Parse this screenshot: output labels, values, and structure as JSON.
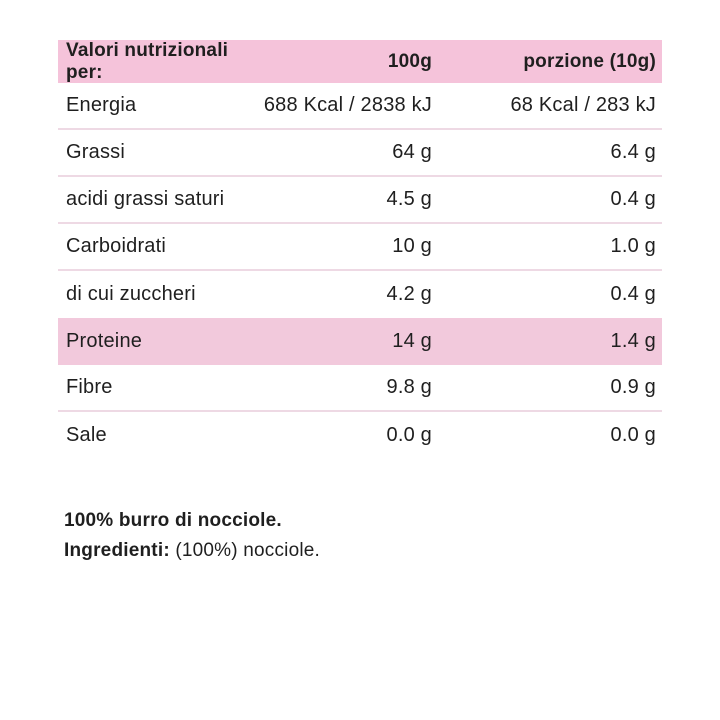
{
  "colors": {
    "header_pink": "#f5c3da",
    "highlight_pink": "#f2c9dc",
    "divider_pink": "#eed9e4",
    "text": "#1f1f1f",
    "background": "#ffffff"
  },
  "table": {
    "header": {
      "label": "Valori nutrizionali per:",
      "per_100g": "100g",
      "per_portion": "porzione (10g)"
    },
    "rows": [
      {
        "label": "Energia",
        "per_100g": "688 Kcal / 2838 kJ",
        "per_portion": "68 Kcal / 283 kJ",
        "highlight": false
      },
      {
        "label": "Grassi",
        "per_100g": "64 g",
        "per_portion": "6.4 g",
        "highlight": false
      },
      {
        "label": "acidi grassi saturi",
        "per_100g": "4.5 g",
        "per_portion": "0.4 g",
        "highlight": false
      },
      {
        "label": "Carboidrati",
        "per_100g": "10 g",
        "per_portion": "1.0 g",
        "highlight": false
      },
      {
        "label": "di cui zuccheri",
        "per_100g": "4.2 g",
        "per_portion": "0.4 g",
        "highlight": false
      },
      {
        "label": "Proteine",
        "per_100g": "14 g",
        "per_portion": "1.4 g",
        "highlight": true
      },
      {
        "label": "Fibre",
        "per_100g": "9.8 g",
        "per_portion": "0.9 g",
        "highlight": false
      },
      {
        "label": "Sale",
        "per_100g": "0.0 g",
        "per_portion": "0.0 g",
        "highlight": false
      }
    ]
  },
  "footer": {
    "description": "100% burro di nocciole.",
    "ingredients_label": "Ingredienti:",
    "ingredients_text": " (100%) nocciole."
  }
}
